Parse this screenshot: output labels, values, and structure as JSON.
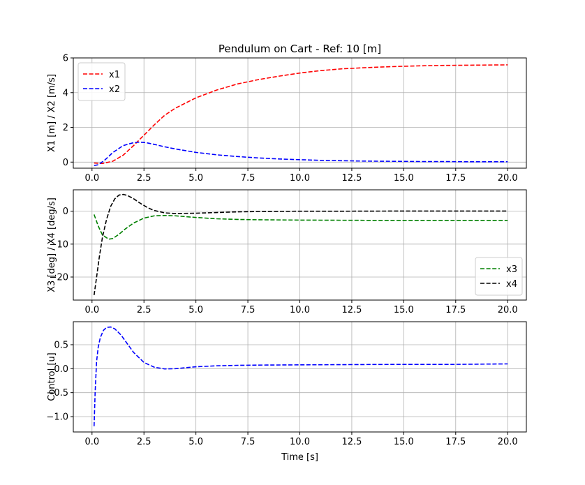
{
  "chart_data": [
    {
      "type": "line",
      "title": "Pendulum on Cart - Ref: 10 [m]",
      "xlabel": "",
      "ylabel": "X1 [m] / X2 [m/s]",
      "xlim": [
        -0.9,
        20.9
      ],
      "ylim": [
        -0.35,
        6.0
      ],
      "xticks": [
        0.0,
        2.5,
        5.0,
        7.5,
        10.0,
        12.5,
        15.0,
        17.5,
        20.0
      ],
      "xtick_labels": [
        "0.0",
        "2.5",
        "5.0",
        "7.5",
        "10.0",
        "12.5",
        "15.0",
        "17.5",
        "20.0"
      ],
      "yticks": [
        0,
        2,
        4,
        6
      ],
      "ytick_labels": [
        "0",
        "2",
        "4",
        "6"
      ],
      "grid": true,
      "legend": "upper left",
      "series": [
        {
          "name": "x1",
          "color": "#ff0000",
          "x": [
            0.1,
            0.5,
            1.0,
            1.5,
            2.0,
            2.5,
            3.0,
            3.5,
            4.0,
            5.0,
            6.0,
            7.0,
            8.0,
            9.0,
            10.0,
            11.0,
            12.0,
            13.0,
            14.0,
            15.0,
            16.0,
            17.0,
            18.0,
            19.0,
            20.0
          ],
          "y": [
            -0.05,
            -0.08,
            0.05,
            0.4,
            0.95,
            1.55,
            2.15,
            2.7,
            3.1,
            3.7,
            4.15,
            4.5,
            4.75,
            4.95,
            5.13,
            5.27,
            5.37,
            5.43,
            5.48,
            5.52,
            5.55,
            5.57,
            5.58,
            5.59,
            5.6
          ]
        },
        {
          "name": "x2",
          "color": "#0000ff",
          "x": [
            0.1,
            0.3,
            0.6,
            1.0,
            1.5,
            2.0,
            2.3,
            2.6,
            3.0,
            3.5,
            4.0,
            5.0,
            6.0,
            7.0,
            8.0,
            9.0,
            10.0,
            11.0,
            12.0,
            13.0,
            14.0,
            15.0,
            16.0,
            17.0,
            18.0,
            19.0,
            20.0
          ],
          "y": [
            -0.2,
            -0.15,
            0.1,
            0.55,
            0.95,
            1.12,
            1.15,
            1.12,
            1.02,
            0.88,
            0.76,
            0.56,
            0.42,
            0.32,
            0.24,
            0.18,
            0.14,
            0.1,
            0.08,
            0.06,
            0.05,
            0.04,
            0.03,
            0.03,
            0.02,
            0.02,
            0.02
          ]
        }
      ]
    },
    {
      "type": "line",
      "title": "",
      "xlabel": "",
      "ylabel": "X3 [deg] / X4 [deg/s]",
      "xlim": [
        -0.9,
        20.9
      ],
      "ylim": [
        -27.0,
        6.5
      ],
      "xticks": [
        0.0,
        2.5,
        5.0,
        7.5,
        10.0,
        12.5,
        15.0,
        17.5,
        20.0
      ],
      "xtick_labels": [
        "0.0",
        "2.5",
        "5.0",
        "7.5",
        "10.0",
        "12.5",
        "15.0",
        "17.5",
        "20.0"
      ],
      "yticks": [
        0,
        -10,
        -20
      ],
      "ytick_labels": [
        "0",
        "−10",
        "−20"
      ],
      "grid": true,
      "legend": "lower right",
      "series": [
        {
          "name": "x3",
          "color": "#008000",
          "x": [
            0.1,
            0.3,
            0.5,
            0.8,
            1.0,
            1.3,
            1.6,
            2.0,
            2.5,
            3.0,
            3.5,
            4.0,
            5.0,
            6.0,
            7.0,
            8.0,
            10.0,
            12.0,
            14.0,
            16.0,
            18.0,
            20.0
          ],
          "y": [
            -1.0,
            -4.5,
            -7.2,
            -8.5,
            -8.3,
            -7.0,
            -5.4,
            -3.6,
            -2.1,
            -1.4,
            -1.3,
            -1.4,
            -1.9,
            -2.3,
            -2.5,
            -2.6,
            -2.7,
            -2.75,
            -2.8,
            -2.8,
            -2.8,
            -2.8
          ]
        },
        {
          "name": "x4",
          "color": "#000000",
          "x": [
            0.1,
            0.2,
            0.35,
            0.5,
            0.7,
            0.9,
            1.1,
            1.3,
            1.5,
            1.7,
            2.0,
            2.3,
            2.7,
            3.0,
            3.5,
            4.0,
            5.0,
            6.0,
            7.0,
            8.0,
            10.0,
            12.0,
            15.0,
            20.0
          ],
          "y": [
            -25.5,
            -21.0,
            -14.0,
            -8.0,
            -2.5,
            1.5,
            3.8,
            4.9,
            5.1,
            4.8,
            3.8,
            2.5,
            1.0,
            0.2,
            -0.5,
            -0.7,
            -0.6,
            -0.4,
            -0.2,
            -0.1,
            0.0,
            0.0,
            0.05,
            0.05
          ]
        }
      ]
    },
    {
      "type": "line",
      "title": "",
      "xlabel": "Time [s]",
      "ylabel": "Control [u]",
      "xlim": [
        -0.9,
        20.9
      ],
      "ylim": [
        -1.32,
        0.98
      ],
      "xticks": [
        0.0,
        2.5,
        5.0,
        7.5,
        10.0,
        12.5,
        15.0,
        17.5,
        20.0
      ],
      "xtick_labels": [
        "0.0",
        "2.5",
        "5.0",
        "7.5",
        "10.0",
        "12.5",
        "15.0",
        "17.5",
        "20.0"
      ],
      "yticks": [
        0.5,
        0.0,
        -0.5,
        -1.0
      ],
      "ytick_labels": [
        "0.5",
        "0.0",
        "−0.5",
        "−1.0"
      ],
      "grid": true,
      "legend": "none",
      "series": [
        {
          "name": "",
          "color": "#0000ff",
          "x": [
            0.1,
            0.15,
            0.22,
            0.3,
            0.4,
            0.55,
            0.7,
            0.9,
            1.1,
            1.4,
            1.7,
            2.0,
            2.5,
            3.0,
            3.5,
            4.0,
            4.5,
            5.0,
            6.0,
            7.0,
            8.0,
            10.0,
            12.5,
            15.0,
            17.5,
            20.0
          ],
          "y": [
            -1.2,
            -0.5,
            0.15,
            0.45,
            0.65,
            0.8,
            0.86,
            0.87,
            0.83,
            0.7,
            0.52,
            0.34,
            0.13,
            0.03,
            -0.005,
            0.0,
            0.02,
            0.04,
            0.06,
            0.07,
            0.075,
            0.08,
            0.085,
            0.09,
            0.09,
            0.1
          ]
        }
      ]
    }
  ]
}
